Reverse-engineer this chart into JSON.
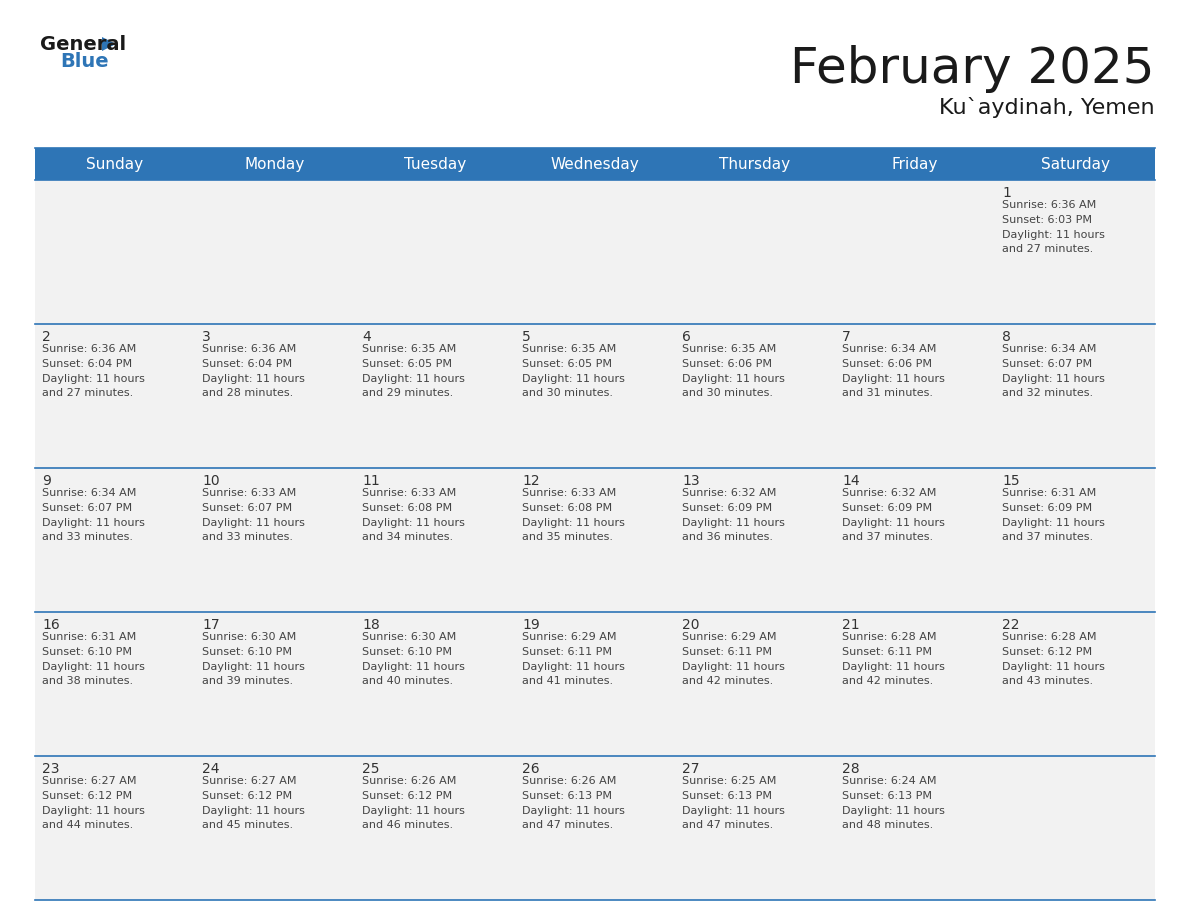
{
  "title": "February 2025",
  "subtitle": "Ku`aydinah, Yemen",
  "header_color": "#2E75B6",
  "header_text_color": "#FFFFFF",
  "cell_bg_color": "#F2F2F2",
  "day_headers": [
    "Sunday",
    "Monday",
    "Tuesday",
    "Wednesday",
    "Thursday",
    "Friday",
    "Saturday"
  ],
  "days": [
    {
      "day": 1,
      "col": 6,
      "row": 0,
      "sunrise": "6:36 AM",
      "sunset": "6:03 PM",
      "daylight": "11 hours and 27 minutes."
    },
    {
      "day": 2,
      "col": 0,
      "row": 1,
      "sunrise": "6:36 AM",
      "sunset": "6:04 PM",
      "daylight": "11 hours and 27 minutes."
    },
    {
      "day": 3,
      "col": 1,
      "row": 1,
      "sunrise": "6:36 AM",
      "sunset": "6:04 PM",
      "daylight": "11 hours and 28 minutes."
    },
    {
      "day": 4,
      "col": 2,
      "row": 1,
      "sunrise": "6:35 AM",
      "sunset": "6:05 PM",
      "daylight": "11 hours and 29 minutes."
    },
    {
      "day": 5,
      "col": 3,
      "row": 1,
      "sunrise": "6:35 AM",
      "sunset": "6:05 PM",
      "daylight": "11 hours and 30 minutes."
    },
    {
      "day": 6,
      "col": 4,
      "row": 1,
      "sunrise": "6:35 AM",
      "sunset": "6:06 PM",
      "daylight": "11 hours and 30 minutes."
    },
    {
      "day": 7,
      "col": 5,
      "row": 1,
      "sunrise": "6:34 AM",
      "sunset": "6:06 PM",
      "daylight": "11 hours and 31 minutes."
    },
    {
      "day": 8,
      "col": 6,
      "row": 1,
      "sunrise": "6:34 AM",
      "sunset": "6:07 PM",
      "daylight": "11 hours and 32 minutes."
    },
    {
      "day": 9,
      "col": 0,
      "row": 2,
      "sunrise": "6:34 AM",
      "sunset": "6:07 PM",
      "daylight": "11 hours and 33 minutes."
    },
    {
      "day": 10,
      "col": 1,
      "row": 2,
      "sunrise": "6:33 AM",
      "sunset": "6:07 PM",
      "daylight": "11 hours and 33 minutes."
    },
    {
      "day": 11,
      "col": 2,
      "row": 2,
      "sunrise": "6:33 AM",
      "sunset": "6:08 PM",
      "daylight": "11 hours and 34 minutes."
    },
    {
      "day": 12,
      "col": 3,
      "row": 2,
      "sunrise": "6:33 AM",
      "sunset": "6:08 PM",
      "daylight": "11 hours and 35 minutes."
    },
    {
      "day": 13,
      "col": 4,
      "row": 2,
      "sunrise": "6:32 AM",
      "sunset": "6:09 PM",
      "daylight": "11 hours and 36 minutes."
    },
    {
      "day": 14,
      "col": 5,
      "row": 2,
      "sunrise": "6:32 AM",
      "sunset": "6:09 PM",
      "daylight": "11 hours and 37 minutes."
    },
    {
      "day": 15,
      "col": 6,
      "row": 2,
      "sunrise": "6:31 AM",
      "sunset": "6:09 PM",
      "daylight": "11 hours and 37 minutes."
    },
    {
      "day": 16,
      "col": 0,
      "row": 3,
      "sunrise": "6:31 AM",
      "sunset": "6:10 PM",
      "daylight": "11 hours and 38 minutes."
    },
    {
      "day": 17,
      "col": 1,
      "row": 3,
      "sunrise": "6:30 AM",
      "sunset": "6:10 PM",
      "daylight": "11 hours and 39 minutes."
    },
    {
      "day": 18,
      "col": 2,
      "row": 3,
      "sunrise": "6:30 AM",
      "sunset": "6:10 PM",
      "daylight": "11 hours and 40 minutes."
    },
    {
      "day": 19,
      "col": 3,
      "row": 3,
      "sunrise": "6:29 AM",
      "sunset": "6:11 PM",
      "daylight": "11 hours and 41 minutes."
    },
    {
      "day": 20,
      "col": 4,
      "row": 3,
      "sunrise": "6:29 AM",
      "sunset": "6:11 PM",
      "daylight": "11 hours and 42 minutes."
    },
    {
      "day": 21,
      "col": 5,
      "row": 3,
      "sunrise": "6:28 AM",
      "sunset": "6:11 PM",
      "daylight": "11 hours and 42 minutes."
    },
    {
      "day": 22,
      "col": 6,
      "row": 3,
      "sunrise": "6:28 AM",
      "sunset": "6:12 PM",
      "daylight": "11 hours and 43 minutes."
    },
    {
      "day": 23,
      "col": 0,
      "row": 4,
      "sunrise": "6:27 AM",
      "sunset": "6:12 PM",
      "daylight": "11 hours and 44 minutes."
    },
    {
      "day": 24,
      "col": 1,
      "row": 4,
      "sunrise": "6:27 AM",
      "sunset": "6:12 PM",
      "daylight": "11 hours and 45 minutes."
    },
    {
      "day": 25,
      "col": 2,
      "row": 4,
      "sunrise": "6:26 AM",
      "sunset": "6:12 PM",
      "daylight": "11 hours and 46 minutes."
    },
    {
      "day": 26,
      "col": 3,
      "row": 4,
      "sunrise": "6:26 AM",
      "sunset": "6:13 PM",
      "daylight": "11 hours and 47 minutes."
    },
    {
      "day": 27,
      "col": 4,
      "row": 4,
      "sunrise": "6:25 AM",
      "sunset": "6:13 PM",
      "daylight": "11 hours and 47 minutes."
    },
    {
      "day": 28,
      "col": 5,
      "row": 4,
      "sunrise": "6:24 AM",
      "sunset": "6:13 PM",
      "daylight": "11 hours and 48 minutes."
    }
  ],
  "num_rows": 5,
  "num_cols": 7,
  "line_color": "#2E75B6",
  "date_color": "#333333",
  "text_color": "#444444",
  "bg_color": "#FFFFFF",
  "title_fontsize": 36,
  "subtitle_fontsize": 16,
  "header_fontsize": 11,
  "day_num_fontsize": 10,
  "cell_text_fontsize": 8
}
